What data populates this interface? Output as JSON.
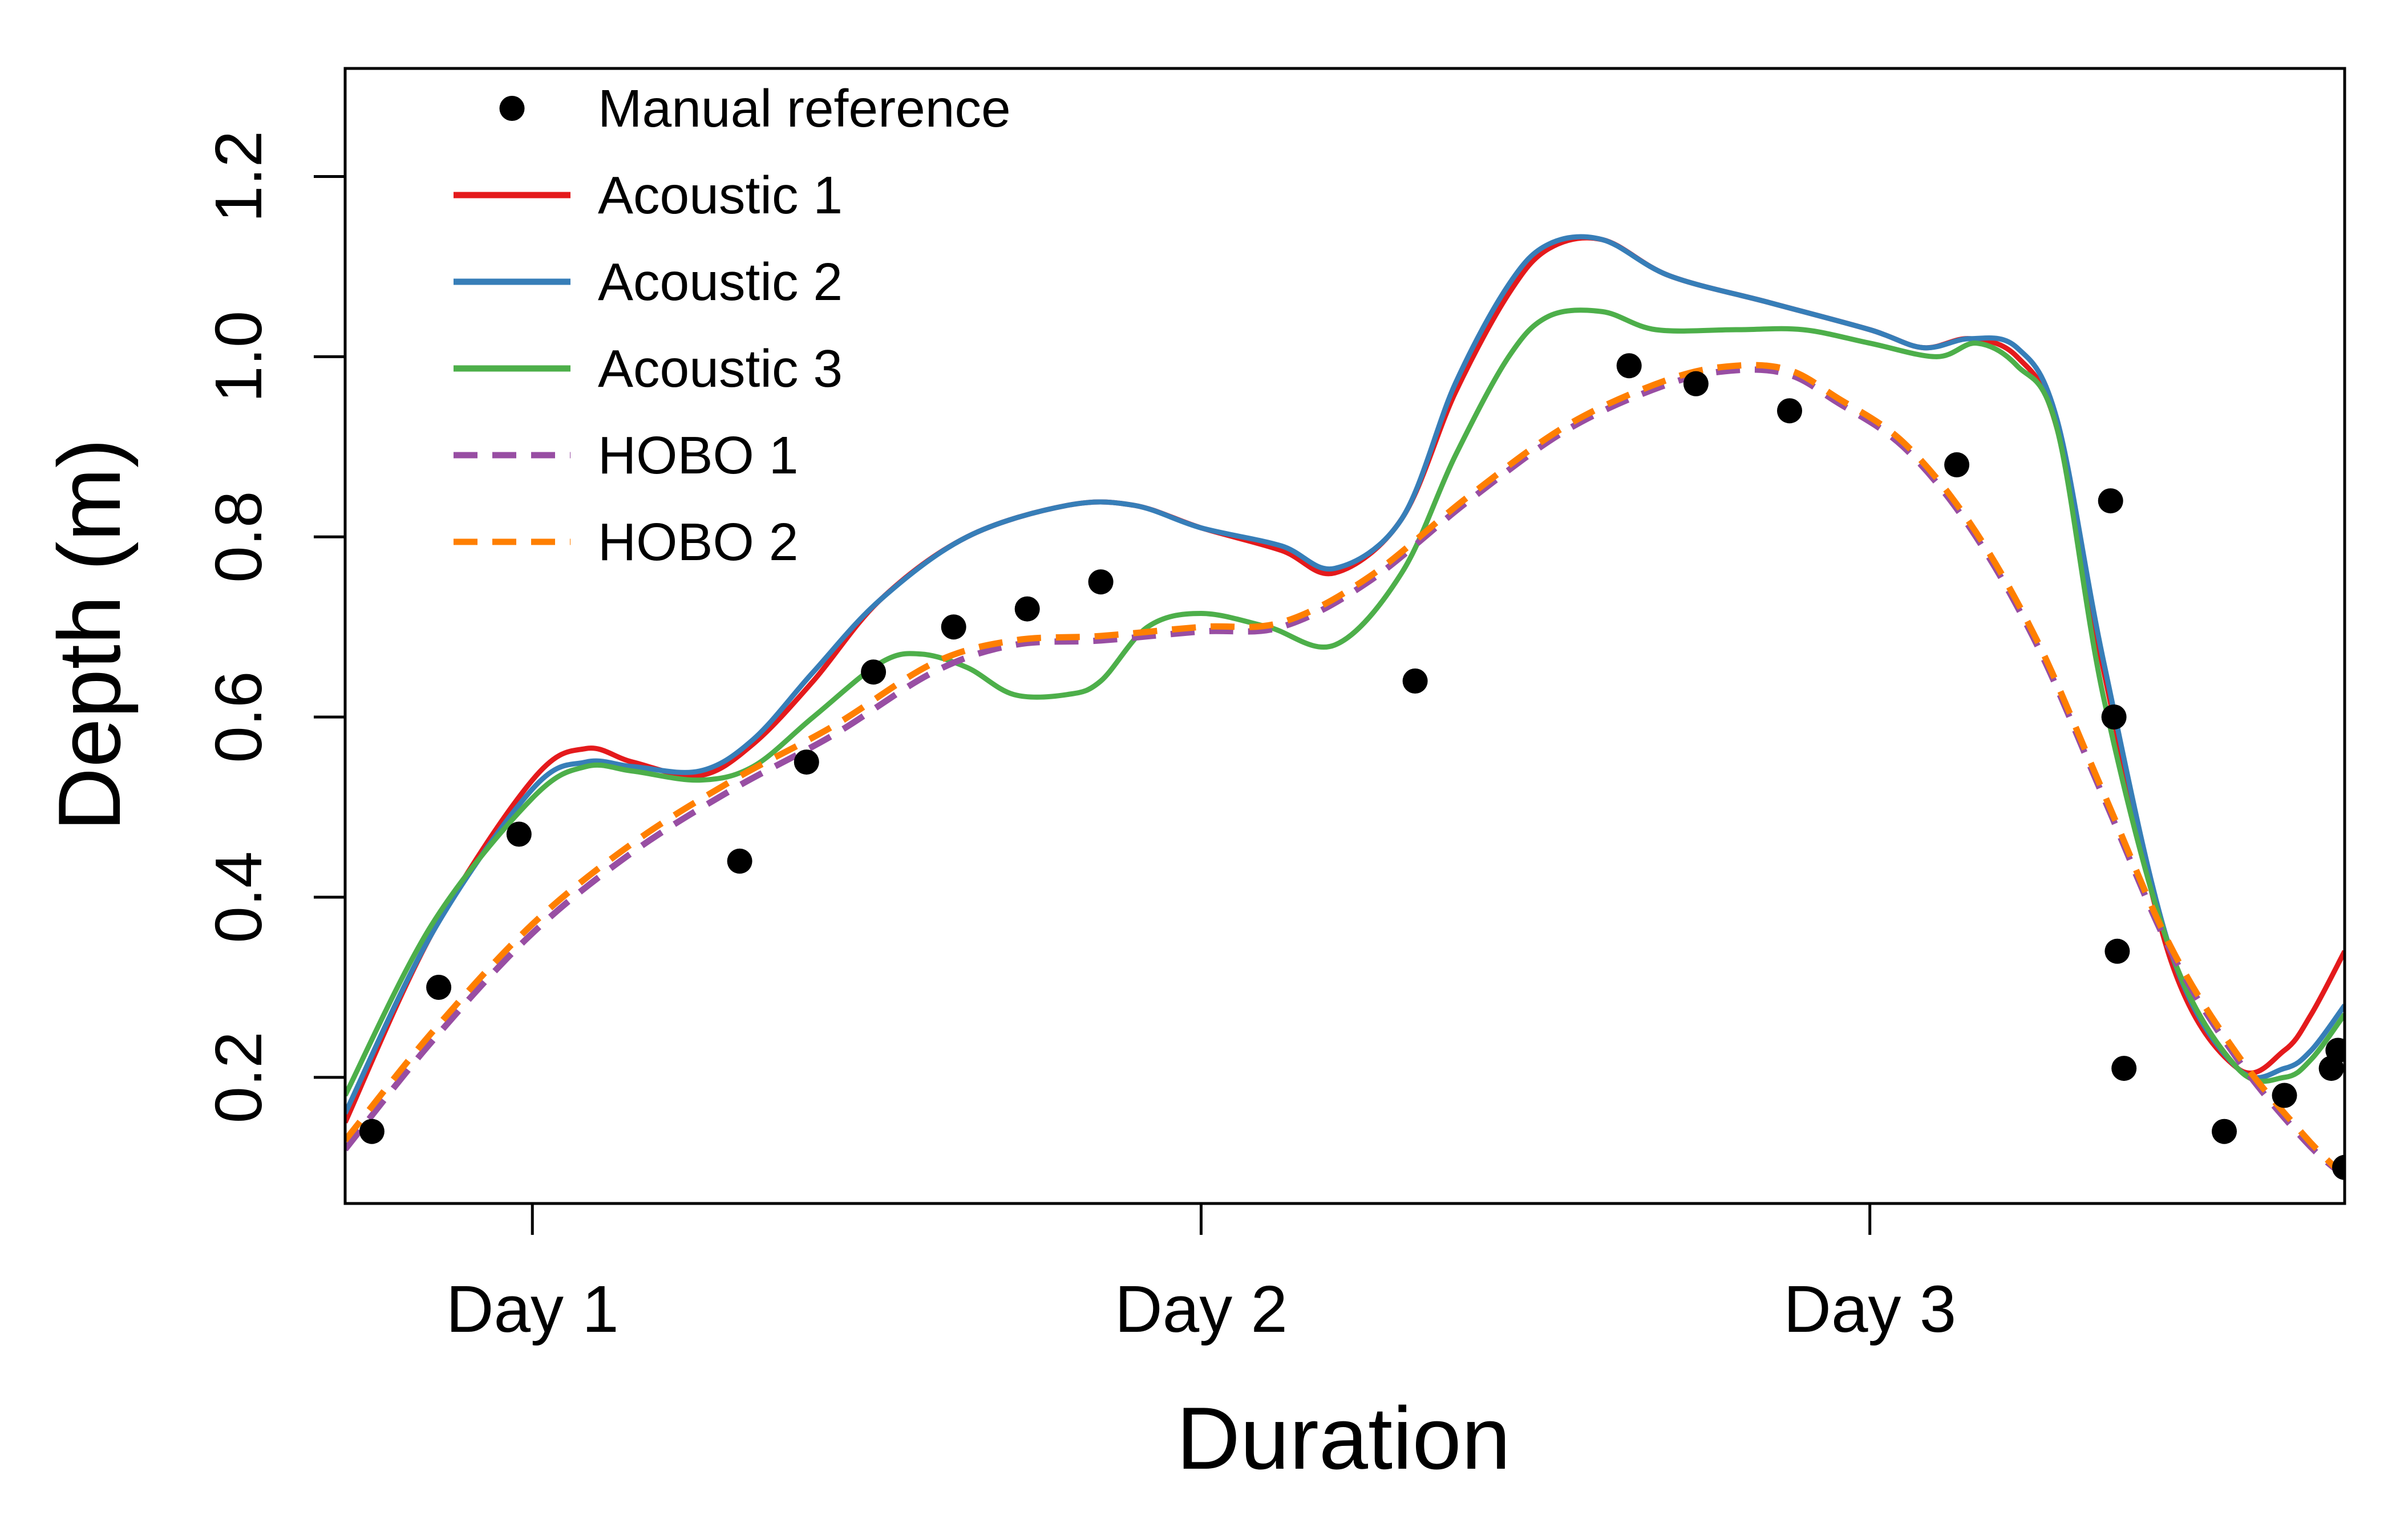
{
  "chart_data": {
    "type": "line",
    "xlabel": "Duration",
    "ylabel": "Depth (m)",
    "xlim": [
      0.72,
      3.71
    ],
    "ylim": [
      0.06,
      1.32
    ],
    "x_ticks": [
      {
        "value": 1,
        "label": "Day 1"
      },
      {
        "value": 2,
        "label": "Day 2"
      },
      {
        "value": 3,
        "label": "Day 3"
      }
    ],
    "y_ticks": [
      {
        "value": 0.2,
        "label": "0.2"
      },
      {
        "value": 0.4,
        "label": "0.4"
      },
      {
        "value": 0.6,
        "label": "0.6"
      },
      {
        "value": 0.8,
        "label": "0.8"
      },
      {
        "value": 1.0,
        "label": "1.0"
      },
      {
        "value": 1.2,
        "label": "1.2"
      }
    ],
    "grid": false,
    "legend_position": "top-left",
    "series": [
      {
        "name": "Manual reference",
        "kind": "points",
        "color": "#000000",
        "x": [
          0.76,
          0.86,
          0.98,
          1.31,
          1.41,
          1.51,
          1.63,
          1.74,
          1.85,
          2.32,
          2.64,
          2.74,
          2.88,
          3.13,
          3.36,
          3.365,
          3.37,
          3.38,
          3.53,
          3.62,
          3.69,
          3.7,
          3.71
        ],
        "y": [
          0.14,
          0.3,
          0.47,
          0.44,
          0.55,
          0.65,
          0.7,
          0.72,
          0.75,
          0.64,
          0.99,
          0.97,
          0.94,
          0.88,
          0.84,
          0.6,
          0.34,
          0.21,
          0.14,
          0.18,
          0.21,
          0.23,
          0.1
        ]
      },
      {
        "name": "Acoustic 1",
        "kind": "line",
        "dash": false,
        "color": "#E41A1C",
        "x": [
          0.72,
          0.85,
          1.0,
          1.08,
          1.15,
          1.25,
          1.33,
          1.42,
          1.52,
          1.65,
          1.8,
          1.9,
          2.0,
          2.12,
          2.2,
          2.3,
          2.38,
          2.46,
          2.52,
          2.6,
          2.7,
          2.85,
          3.0,
          3.08,
          3.15,
          3.22,
          3.28,
          3.35,
          3.45,
          3.55,
          3.62,
          3.66,
          3.71
        ],
        "y": [
          0.15,
          0.36,
          0.53,
          0.565,
          0.55,
          0.535,
          0.57,
          0.64,
          0.73,
          0.8,
          0.835,
          0.835,
          0.81,
          0.785,
          0.76,
          0.82,
          0.96,
          1.07,
          1.12,
          1.13,
          1.09,
          1.06,
          1.03,
          1.01,
          1.02,
          1.0,
          0.92,
          0.65,
          0.33,
          0.21,
          0.23,
          0.27,
          0.34
        ]
      },
      {
        "name": "Acoustic 2",
        "kind": "line",
        "dash": false,
        "color": "#377EB8",
        "x": [
          0.72,
          0.85,
          1.0,
          1.08,
          1.15,
          1.25,
          1.33,
          1.42,
          1.52,
          1.65,
          1.8,
          1.9,
          2.0,
          2.12,
          2.2,
          2.3,
          2.38,
          2.46,
          2.52,
          2.6,
          2.7,
          2.85,
          3.0,
          3.08,
          3.15,
          3.22,
          3.28,
          3.35,
          3.45,
          3.55,
          3.62,
          3.66,
          3.71
        ],
        "y": [
          0.16,
          0.36,
          0.52,
          0.55,
          0.545,
          0.54,
          0.575,
          0.65,
          0.73,
          0.8,
          0.835,
          0.835,
          0.81,
          0.79,
          0.765,
          0.82,
          0.97,
          1.08,
          1.125,
          1.13,
          1.09,
          1.06,
          1.03,
          1.01,
          1.02,
          1.01,
          0.93,
          0.66,
          0.34,
          0.21,
          0.21,
          0.23,
          0.28
        ]
      },
      {
        "name": "Acoustic 3",
        "kind": "line",
        "dash": false,
        "color": "#4DAF4A",
        "x": [
          0.72,
          0.85,
          1.0,
          1.08,
          1.15,
          1.25,
          1.33,
          1.42,
          1.52,
          1.58,
          1.65,
          1.72,
          1.8,
          1.85,
          1.92,
          2.0,
          2.1,
          2.2,
          2.3,
          2.38,
          2.46,
          2.52,
          2.6,
          2.68,
          2.8,
          2.9,
          3.0,
          3.1,
          3.16,
          3.22,
          3.28,
          3.35,
          3.45,
          3.55,
          3.62,
          3.66,
          3.71
        ],
        "y": [
          0.18,
          0.37,
          0.51,
          0.545,
          0.54,
          0.53,
          0.545,
          0.6,
          0.66,
          0.67,
          0.655,
          0.625,
          0.625,
          0.64,
          0.7,
          0.715,
          0.7,
          0.68,
          0.76,
          0.89,
          1.0,
          1.045,
          1.05,
          1.03,
          1.03,
          1.03,
          1.015,
          1.0,
          1.015,
          0.99,
          0.92,
          0.62,
          0.34,
          0.21,
          0.2,
          0.22,
          0.27
        ]
      },
      {
        "name": "HOBO 1",
        "kind": "line",
        "dash": true,
        "color": "#984EA3",
        "x": [
          0.72,
          0.85,
          1.0,
          1.15,
          1.3,
          1.45,
          1.6,
          1.72,
          1.85,
          2.0,
          2.12,
          2.25,
          2.4,
          2.55,
          2.7,
          2.8,
          2.88,
          2.95,
          3.05,
          3.15,
          3.25,
          3.35,
          3.45,
          3.55,
          3.65,
          3.71
        ],
        "y": [
          0.12,
          0.24,
          0.36,
          0.45,
          0.52,
          0.58,
          0.65,
          0.68,
          0.685,
          0.695,
          0.7,
          0.75,
          0.84,
          0.92,
          0.97,
          0.985,
          0.98,
          0.95,
          0.9,
          0.81,
          0.68,
          0.51,
          0.34,
          0.22,
          0.13,
          0.09
        ]
      },
      {
        "name": "HOBO 2",
        "kind": "line",
        "dash": true,
        "color": "#FF7F00",
        "x": [
          0.72,
          0.85,
          1.0,
          1.15,
          1.3,
          1.45,
          1.6,
          1.72,
          1.85,
          2.0,
          2.12,
          2.25,
          2.4,
          2.55,
          2.7,
          2.8,
          2.88,
          2.95,
          3.05,
          3.15,
          3.25,
          3.35,
          3.45,
          3.55,
          3.65,
          3.71
        ],
        "y": [
          0.13,
          0.25,
          0.37,
          0.46,
          0.53,
          0.59,
          0.66,
          0.685,
          0.69,
          0.7,
          0.705,
          0.755,
          0.845,
          0.925,
          0.975,
          0.99,
          0.985,
          0.955,
          0.905,
          0.815,
          0.685,
          0.515,
          0.345,
          0.225,
          0.135,
          0.09
        ]
      }
    ]
  }
}
